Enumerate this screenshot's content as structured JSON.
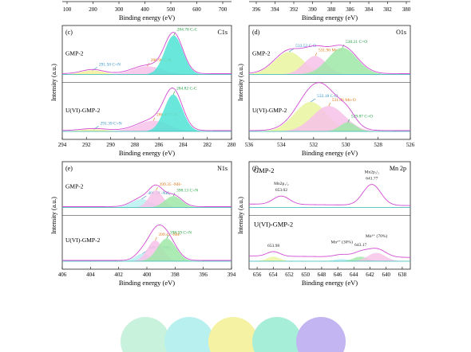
{
  "figure": {
    "axis_common": {
      "xlabel": "Binding energy (eV)",
      "ylabel": "Intensity (a.u.)"
    },
    "top_strip": {
      "left_ticks": [
        "100",
        "200",
        "300",
        "400",
        "500",
        "600",
        "700"
      ],
      "right_ticks": [
        "396",
        "394",
        "392",
        "390",
        "388",
        "386",
        "384",
        "382",
        "380"
      ],
      "left_xlabel": "Binding energy (eV)",
      "right_xlabel": "Binding energy (eV)"
    },
    "swatch_colors": [
      "#c9f2dc",
      "#b8f0f0",
      "#f5f3a3",
      "#a7eed8",
      "#c3b4f2"
    ]
  },
  "chart_data": [
    {
      "type": "line",
      "panel": "(c)",
      "element": "C1s",
      "xlabel": "Binding energy (eV)",
      "ylabel": "Intensity (a.u.)",
      "xlim": [
        294,
        280
      ],
      "ticks": [
        "294",
        "292",
        "290",
        "288",
        "286",
        "284",
        "282",
        "280"
      ],
      "colors": {
        "envelope": "#d24bd2",
        "baseline": "#2bb5b5",
        "peak1": "#f0e68c",
        "peak2": "#f4b8e8",
        "peak3": "#40e0d0"
      },
      "subpanels": [
        {
          "sample": "GMP-2",
          "peaks": [
            {
              "label": "291.50 C=N",
              "center": 291.5,
              "height": 0.1,
              "width": 0.9,
              "fill": "#f3ef9a",
              "label_color": "#2d8fc4"
            },
            {
              "label": "286.96 C-N",
              "center": 286.96,
              "height": 0.2,
              "width": 1.2,
              "fill": "#f7c2e9",
              "label_color": "#e0760f"
            },
            {
              "label": "284.78 C-C",
              "center": 284.78,
              "height": 0.95,
              "width": 0.75,
              "fill": "#4fe3d3",
              "label_color": "#1e9e3d"
            }
          ]
        },
        {
          "sample": "U(VI)-GMP-2",
          "peaks": [
            {
              "label": "291.39 C=N",
              "center": 291.39,
              "height": 0.05,
              "width": 1.1,
              "fill": "#f3ef9a",
              "label_color": "#2d8fc4"
            },
            {
              "label": "286.47 C-N",
              "center": 286.47,
              "height": 0.26,
              "width": 1.3,
              "fill": "#f7c2e9",
              "label_color": "#e0760f"
            },
            {
              "label": "284.82 C-C",
              "center": 284.82,
              "height": 0.9,
              "width": 0.75,
              "fill": "#4fe3d3",
              "label_color": "#1e9e3d"
            }
          ]
        }
      ]
    },
    {
      "type": "line",
      "panel": "(d)",
      "element": "O1s",
      "xlabel": "Binding energy (eV)",
      "ylabel": "Intensity (a.u.)",
      "xlim": [
        536,
        526
      ],
      "ticks": [
        "536",
        "534",
        "532",
        "530",
        "528",
        "526"
      ],
      "subpanels": [
        {
          "sample": "GMP-2",
          "peaks": [
            {
              "label": "533.52 C-O",
              "center": 533.52,
              "height": 0.55,
              "width": 0.9,
              "fill": "#e9f59e",
              "label_color": "#2d8fc4"
            },
            {
              "label": "531.90 Mn-O",
              "center": 531.9,
              "height": 0.45,
              "width": 0.7,
              "fill": "#f7c2e9",
              "label_color": "#e0760f"
            },
            {
              "label": "530.21 C=O",
              "center": 530.21,
              "height": 0.65,
              "width": 0.9,
              "fill": "#9fe8a8",
              "label_color": "#1e9e3d"
            }
          ]
        },
        {
          "sample": "U(VI)-GMP-2",
          "peaks": [
            {
              "label": "532.18 C-O",
              "center": 532.18,
              "height": 0.72,
              "width": 1.0,
              "fill": "#e9f59e",
              "label_color": "#2d8fc4"
            },
            {
              "label": "531.06 Mn-O",
              "center": 531.06,
              "height": 0.62,
              "width": 1.0,
              "fill": "#f7c2e9",
              "label_color": "#e0760f"
            },
            {
              "label": "529.87 C=O",
              "center": 529.87,
              "height": 0.22,
              "width": 0.5,
              "fill": "#9fe8a8",
              "label_color": "#1e9e3d"
            }
          ]
        }
      ]
    },
    {
      "type": "line",
      "panel": "(e)",
      "element": "N1s",
      "xlabel": "Binding energy (eV)",
      "ylabel": "Intensity (a.u.)",
      "xlim": [
        406,
        394
      ],
      "ticks": [
        "406",
        "404",
        "402",
        "400",
        "398",
        "396",
        "394"
      ],
      "subpanels": [
        {
          "sample": "GMP-2",
          "peaks": [
            {
              "label": "400.38 -NH₂",
              "center": 400.38,
              "height": 0.22,
              "width": 0.7,
              "fill": "#b8f0f0",
              "label_color": "#2d8fc4"
            },
            {
              "label": "399.35 -NH-",
              "center": 399.35,
              "height": 0.45,
              "width": 0.5,
              "fill": "#f7c2e9",
              "label_color": "#e0760f"
            },
            {
              "label": "398.13 C=N",
              "center": 398.13,
              "height": 0.3,
              "width": 0.6,
              "fill": "#9fe8a8",
              "label_color": "#1e9e3d"
            }
          ]
        },
        {
          "sample": "U(VI)-GMP-2",
          "peaks": [
            {
              "label": "400.31 -NH₂",
              "center": 400.31,
              "height": 0.2,
              "width": 0.5,
              "fill": "#b8f0f0",
              "label_color": "#2d8fc4"
            },
            {
              "label": "399.41 -NH-",
              "center": 399.41,
              "height": 0.55,
              "width": 0.55,
              "fill": "#f7c2e9",
              "label_color": "#e0760f"
            },
            {
              "label": "398.59 C=N",
              "center": 398.59,
              "height": 0.6,
              "width": 0.65,
              "fill": "#9fe8a8",
              "label_color": "#1e9e3d"
            }
          ]
        }
      ]
    },
    {
      "type": "line",
      "panel": "(f)",
      "element": "Mn 2p",
      "xlabel": "Binding energy (eV)",
      "ylabel": "Intensity (a.u.)",
      "xlim": [
        657,
        637
      ],
      "ticks": [
        "656",
        "654",
        "652",
        "650",
        "648",
        "646",
        "644",
        "642",
        "640",
        "638"
      ],
      "subpanels": [
        {
          "sample": "GMP-2",
          "annotations": [
            {
              "text": "Mn2p₁/₂",
              "value": "653.02",
              "center": 653.0
            },
            {
              "text": "Mn2p₃/₂",
              "value": "641.77",
              "center": 641.77
            }
          ]
        },
        {
          "sample": "U(VI)-GMP-2",
          "annotations": [
            {
              "text": "",
              "value": "653.98",
              "center": 653.98
            },
            {
              "text": "Mn²⁺ (30%)",
              "value": "",
              "center": 645.5
            },
            {
              "text": "",
              "value": "643.17",
              "center": 643.17
            },
            {
              "text": "Mn³⁺ (70%)",
              "value": "",
              "center": 641.2
            }
          ]
        }
      ]
    }
  ]
}
